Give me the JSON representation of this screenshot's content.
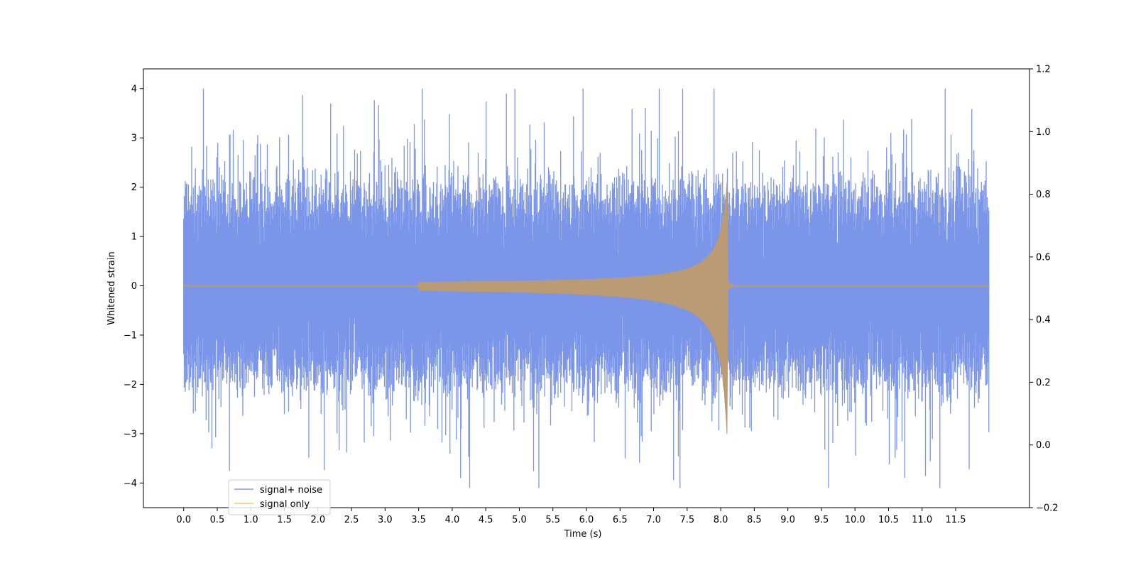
{
  "chart_data": {
    "type": "line",
    "title": "",
    "xlabel": "Time (s)",
    "ylabel": "Whitened strain",
    "xlim": [
      -0.6,
      12.6
    ],
    "ylim": [
      -4.5,
      4.4
    ],
    "y2lim": [
      -0.2,
      1.2
    ],
    "grid": false,
    "legend_position": "lower-left",
    "x_ticks": [
      0.0,
      0.5,
      1.0,
      1.5,
      2.0,
      2.5,
      3.0,
      3.5,
      4.0,
      4.5,
      5.0,
      5.5,
      6.0,
      6.5,
      7.0,
      7.5,
      8.0,
      8.5,
      9.0,
      9.5,
      10.0,
      10.5,
      11.0,
      11.5
    ],
    "x_tick_labels": [
      "0.0",
      "0.5",
      "1.0",
      "1.5",
      "2.0",
      "2.5",
      "3.0",
      "3.5",
      "4.0",
      "4.5",
      "5.0",
      "5.5",
      "6.0",
      "6.5",
      "7.0",
      "7.5",
      "8.0",
      "8.5",
      "9.0",
      "9.5",
      "10.0",
      "10.5",
      "11.0",
      "11.5"
    ],
    "y_ticks": [
      -4,
      -3,
      -2,
      -1,
      0,
      1,
      2,
      3,
      4
    ],
    "y_tick_labels": [
      "−4",
      "−3",
      "−2",
      "−1",
      "0",
      "1",
      "2",
      "3",
      "4"
    ],
    "y2_ticks": [
      -0.2,
      0.0,
      0.2,
      0.4,
      0.6,
      0.8,
      1.0,
      1.2
    ],
    "y2_tick_labels": [
      "−0.2",
      "0.0",
      "0.2",
      "0.4",
      "0.6",
      "0.8",
      "1.0",
      "1.2"
    ],
    "series": [
      {
        "name": "signal+ noise",
        "color": "#7b95e8",
        "x_range": [
          0.0,
          12.0
        ],
        "noise_envelope_typical": [
          -1.7,
          1.7
        ],
        "peak_max": 4.0,
        "peak_min": -4.1
      },
      {
        "name": "signal only",
        "color": "#ffc766",
        "x_range": [
          0.0,
          12.0
        ],
        "chirp_start": 3.5,
        "merger_time": 8.1,
        "peak_max": 2.3,
        "peak_min": -3.3
      }
    ],
    "overlap_color": "#bb9b73"
  }
}
